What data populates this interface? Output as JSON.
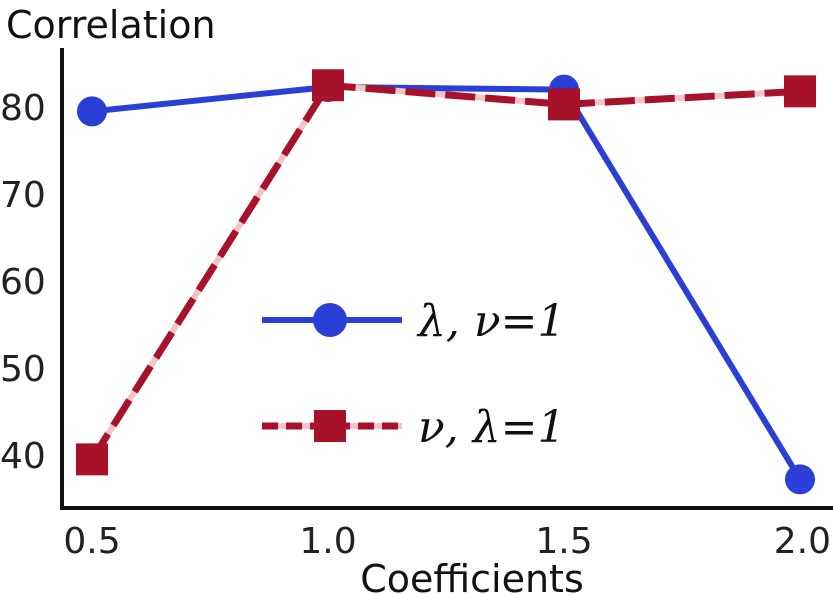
{
  "chart_data": {
    "type": "line",
    "title": "",
    "xlabel": "Coefficients",
    "ylabel": "Correlation",
    "x": [
      0.5,
      1.0,
      1.5,
      2.0
    ],
    "x_tick_labels": [
      "0.5",
      "1.0",
      "1.5",
      "2.0"
    ],
    "y_ticks": [
      40,
      50,
      60,
      70,
      80
    ],
    "y_tick_labels": [
      "40",
      "50",
      "60",
      "70",
      "80"
    ],
    "xlim": [
      0.5,
      2.0
    ],
    "ylim": [
      35,
      86
    ],
    "grid": false,
    "legend_position": "center",
    "series": [
      {
        "name": "λ, ν=1",
        "values": [
          79.5,
          82.3,
          82.0,
          37.2
        ],
        "color": "#2a3fd6",
        "marker": "circle",
        "line_style": "solid"
      },
      {
        "name": "ν, λ=1",
        "values": [
          39.5,
          82.5,
          80.3,
          81.8
        ],
        "color": "#a8112a",
        "dash_highlight_color": "#f0c4c8",
        "marker": "square",
        "line_style": "dashed"
      }
    ]
  }
}
